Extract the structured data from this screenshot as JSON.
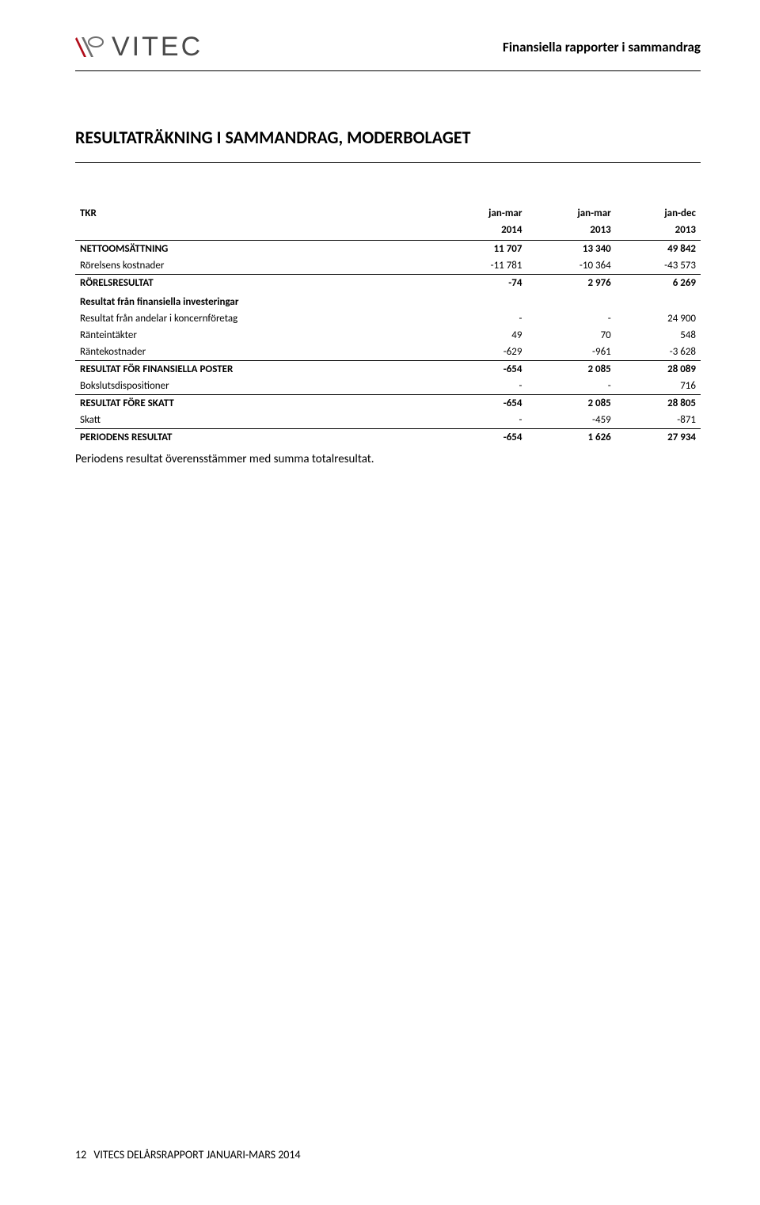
{
  "header": {
    "logo_text": "VITEC",
    "right_title": "Finansiella rapporter i sammandrag"
  },
  "section_title": "RESULTATRÄKNING I SAMMANDRAG, MODERBOLAGET",
  "table": {
    "unit_label": "TKR",
    "col_headers_top": [
      "jan-mar",
      "jan-mar",
      "jan-dec"
    ],
    "col_headers_bottom": [
      "2014",
      "2013",
      "2013"
    ],
    "rows": [
      {
        "label": "NETTOOMSÄTTNING",
        "vals": [
          "11 707",
          "13 340",
          "49 842"
        ],
        "bold": true,
        "topline": false
      },
      {
        "label": "Rörelsens kostnader",
        "vals": [
          "-11 781",
          "-10 364",
          "-43 573"
        ],
        "bold": false,
        "topline": false
      },
      {
        "label": "RÖRELSRESULTAT",
        "vals": [
          "-74",
          "2 976",
          "6 269"
        ],
        "bold": true,
        "topline": true
      },
      {
        "label": "Resultat från finansiella investeringar",
        "vals": [
          "",
          "",
          ""
        ],
        "bold": true,
        "topline": false,
        "section_head": true
      },
      {
        "label": "Resultat från andelar i koncernföretag",
        "vals": [
          "-",
          "-",
          "24 900"
        ],
        "bold": false,
        "topline": false
      },
      {
        "label": "Ränteintäkter",
        "vals": [
          "49",
          "70",
          "548"
        ],
        "bold": false,
        "topline": false
      },
      {
        "label": "Räntekostnader",
        "vals": [
          "-629",
          "-961",
          "-3 628"
        ],
        "bold": false,
        "topline": false
      },
      {
        "label": "RESULTAT FÖR FINANSIELLA POSTER",
        "vals": [
          "-654",
          "2 085",
          "28 089"
        ],
        "bold": true,
        "topline": true
      },
      {
        "label": "Bokslutsdispositioner",
        "vals": [
          "-",
          "-",
          "716"
        ],
        "bold": false,
        "topline": false
      },
      {
        "label": "RESULTAT FÖRE SKATT",
        "vals": [
          "-654",
          "2 085",
          "28 805"
        ],
        "bold": true,
        "topline": true
      },
      {
        "label": "Skatt",
        "vals": [
          "-",
          "-459",
          "-871"
        ],
        "bold": false,
        "topline": false
      },
      {
        "label": "PERIODENS RESULTAT",
        "vals": [
          "-654",
          "1 626",
          "27 934"
        ],
        "bold": true,
        "topline": true
      }
    ]
  },
  "note_text": "Periodens resultat överensstämmer med summa totalresultat.",
  "footer": {
    "page_number": "12",
    "text": "VITECS DELÅRSRAPPORT JANUARI-MARS 2014"
  },
  "colors": {
    "logo_red": "#b10d1a",
    "logo_grey": "#6f6f6f",
    "text": "#000000"
  }
}
